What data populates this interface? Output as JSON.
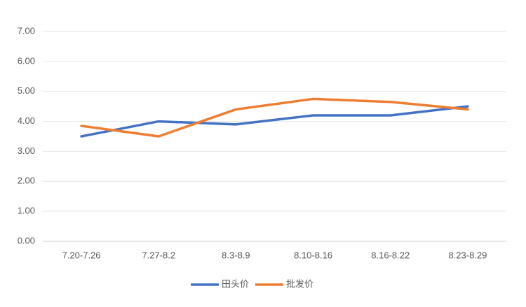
{
  "chart_data": {
    "type": "line",
    "categories": [
      "7.20-7.26",
      "7.27-8.2",
      "8.3-8.9",
      "8.10-8.16",
      "8.16-8.22",
      "8.23-8.29"
    ],
    "series": [
      {
        "name": "田头价",
        "color": "#4472c4",
        "values": [
          3.5,
          4.0,
          3.9,
          4.2,
          4.2,
          4.5
        ]
      },
      {
        "name": "批发价",
        "color": "#ed7d31",
        "values": [
          3.85,
          3.5,
          4.4,
          4.75,
          4.65,
          4.4
        ]
      }
    ],
    "ylim": [
      0,
      7
    ],
    "yticks": [
      {
        "value": 0,
        "label": "0.00"
      },
      {
        "value": 1,
        "label": "1.00"
      },
      {
        "value": 2,
        "label": "2.00"
      },
      {
        "value": 3,
        "label": "3.00"
      },
      {
        "value": 4,
        "label": "4.00"
      },
      {
        "value": 5,
        "label": "5.00"
      },
      {
        "value": 6,
        "label": "6.00"
      },
      {
        "value": 7,
        "label": "7.00"
      }
    ],
    "grid": true,
    "legend": "bottom"
  }
}
